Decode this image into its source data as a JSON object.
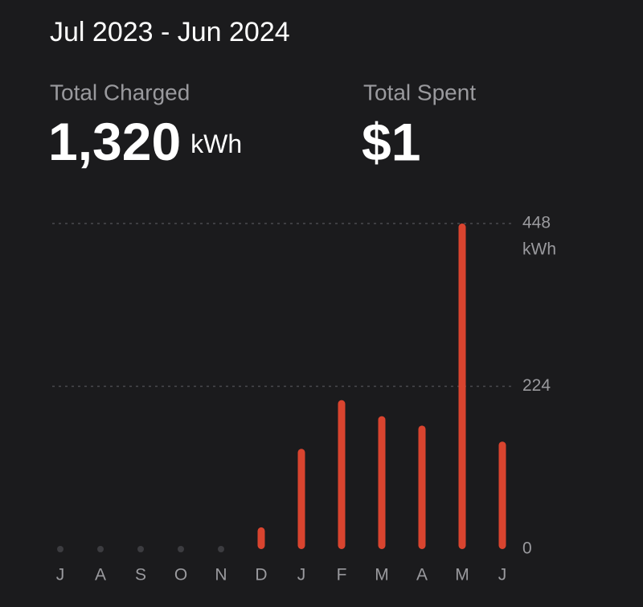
{
  "header": {
    "title": "Jul 2023 - Jun 2024"
  },
  "total_charged": {
    "label": "Total Charged",
    "value": "1,320",
    "unit": "kWh"
  },
  "total_spent": {
    "label": "Total Spent",
    "value": "$1"
  },
  "chart_data": {
    "type": "bar",
    "categories": [
      "J",
      "A",
      "S",
      "O",
      "N",
      "D",
      "J",
      "F",
      "M",
      "A",
      "M",
      "J"
    ],
    "values": [
      0,
      0,
      0,
      0,
      0,
      30,
      138,
      205,
      183,
      170,
      448,
      148
    ],
    "color": "#d9442f",
    "y_unit": "kWh",
    "ylim": [
      0,
      448
    ],
    "yticks": [
      0,
      224,
      448
    ],
    "grid": true
  }
}
